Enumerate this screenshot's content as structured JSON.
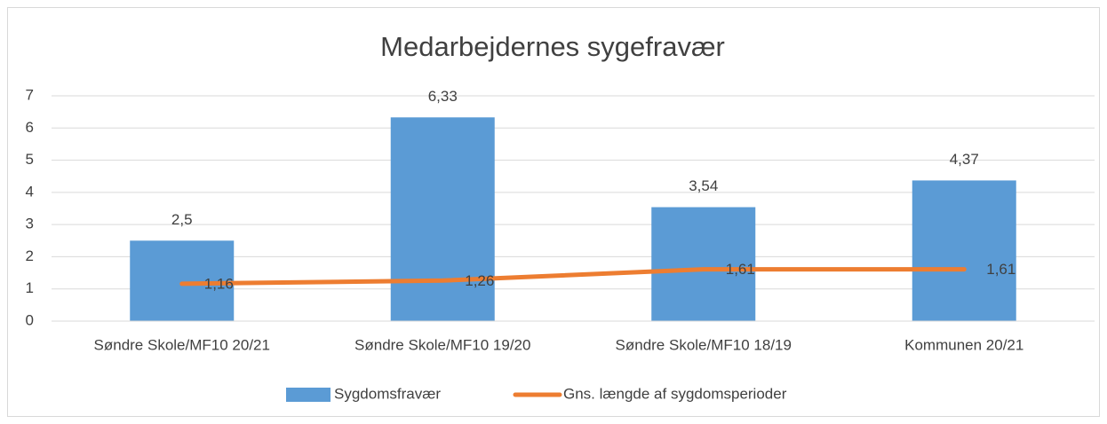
{
  "chart_data": {
    "type": "bar",
    "title": "Medarbejdernes sygefravær",
    "categories": [
      "Søndre Skole/MF10 20/21",
      "Søndre Skole/MF10 19/20",
      "Søndre Skole/MF10 18/19",
      "Kommunen 20/21"
    ],
    "series": [
      {
        "name": "Sygdomsfravær",
        "type": "bar",
        "color": "#5b9bd5",
        "values": [
          2.5,
          6.33,
          3.54,
          4.37
        ],
        "value_labels": [
          "2,5",
          "6,33",
          "3,54",
          "4,37"
        ]
      },
      {
        "name": "Gns. længde af sygdomsperioder",
        "type": "line",
        "color": "#ed7d31",
        "values": [
          1.16,
          1.26,
          1.61,
          1.61
        ],
        "value_labels": [
          "1,16",
          "1,26",
          "1,61",
          "1,61"
        ]
      }
    ],
    "ylim": [
      0,
      7
    ],
    "yticks": [
      0,
      1,
      2,
      3,
      4,
      5,
      6,
      7
    ],
    "grid": true,
    "legend": "bottom"
  }
}
